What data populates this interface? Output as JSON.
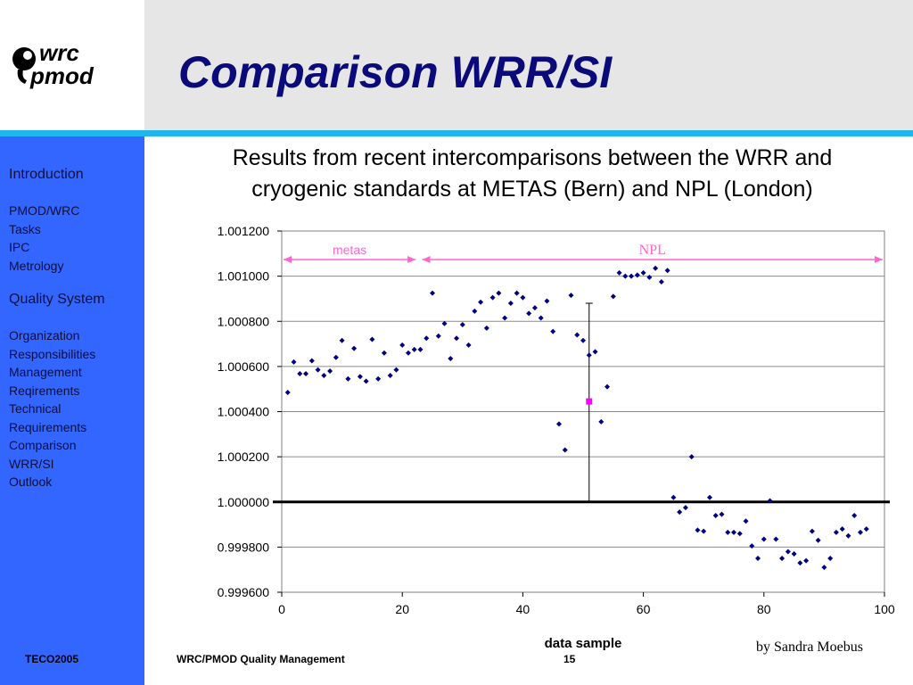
{
  "header": {
    "logo_text_top": "wrc",
    "logo_text_bottom": "pmod",
    "title": "Comparison WRR/SI"
  },
  "sidebar": {
    "sections": [
      {
        "heading": "Introduction",
        "items": [
          "PMOD/WRC",
          "Tasks",
          "IPC",
          "Metrology"
        ]
      },
      {
        "heading": "Quality System",
        "items": [
          "Organization",
          "Responsibilities",
          "Management",
          "Reqirements",
          "Technical",
          "Requirements",
          "Comparison",
          "WRR/SI",
          "Outlook"
        ]
      }
    ]
  },
  "main": {
    "subtitle_line1": "Results from recent intercomparisons between the WRR and",
    "subtitle_line2": "cryogenic standards at METAS (Bern) and NPL (London)",
    "author": "by Sandra Moebus"
  },
  "footer": {
    "left": "TECO2005",
    "center": "WRC/PMOD Quality Management",
    "page": "15"
  },
  "colors": {
    "sidebar": "#3366ff",
    "title": "#0a0a7a",
    "points": "#000080",
    "annotation": "#ff66cc",
    "highlight": "#ff00ff"
  },
  "chart_data": {
    "type": "scatter",
    "xlabel": "data sample",
    "ylabel": "",
    "xlim": [
      0,
      100
    ],
    "ylim": [
      0.9996,
      1.0012
    ],
    "x_ticks": [
      "0",
      "20",
      "40",
      "60",
      "80",
      "100"
    ],
    "y_ticks": [
      "0.999600",
      "0.999800",
      "1.000000",
      "1.000200",
      "1.000400",
      "1.000600",
      "1.000800",
      "1.001000",
      "1.001200"
    ],
    "grid": "horizontal",
    "reference_line": 1.0,
    "annotations": [
      {
        "label": "metas",
        "x_range": [
          0,
          22.5
        ]
      },
      {
        "label": "NPL",
        "x_range": [
          23,
          100
        ]
      }
    ],
    "highlight_point": {
      "x": 51,
      "y": 1.000445,
      "error_low": 1.0,
      "error_high": 1.00088
    },
    "series": [
      {
        "x": [
          1,
          2,
          3,
          4,
          5,
          6,
          7,
          8,
          9,
          10,
          11,
          12,
          13,
          14,
          15,
          16,
          17,
          18,
          19,
          20,
          21,
          22,
          23,
          24,
          25,
          26,
          27,
          28,
          29,
          30,
          31,
          32,
          33,
          34,
          35,
          36,
          37,
          38,
          39,
          40,
          41,
          42,
          43,
          44,
          45,
          46,
          47,
          48,
          49,
          50,
          51,
          52,
          53,
          54,
          55,
          56,
          57,
          58,
          59,
          60,
          61,
          62,
          63,
          64,
          65,
          66,
          67,
          68,
          69,
          70,
          71,
          72,
          73,
          74,
          75,
          76,
          77,
          78,
          79,
          80,
          81,
          82,
          83,
          84,
          85,
          86,
          87,
          88,
          89,
          90,
          91,
          92,
          93,
          94,
          95,
          96,
          97
        ],
        "values": [
          1.000485,
          1.00062,
          1.000568,
          1.000568,
          1.000625,
          1.000585,
          1.00056,
          1.00058,
          1.00064,
          1.000715,
          1.000545,
          1.00068,
          1.000555,
          1.000535,
          1.00072,
          1.000545,
          1.00066,
          1.00056,
          1.000585,
          1.000695,
          1.00066,
          1.000675,
          1.000675,
          1.000725,
          1.000925,
          1.000735,
          1.00079,
          1.000635,
          1.000725,
          1.000785,
          1.000695,
          1.000845,
          1.000885,
          1.00077,
          1.000905,
          1.000925,
          1.000815,
          1.00088,
          1.000925,
          1.000905,
          1.000835,
          1.00086,
          1.000815,
          1.00089,
          1.000755,
          1.000345,
          1.00023,
          1.000915,
          1.00074,
          1.000715,
          1.00065,
          1.000665,
          1.000355,
          1.00051,
          1.00091,
          1.001015,
          1.001,
          1.001,
          1.001005,
          1.001015,
          1.000995,
          1.001035,
          1.000975,
          1.001025,
          1.00002,
          0.999955,
          0.999975,
          1.0002,
          0.999875,
          0.99987,
          1.00002,
          0.99994,
          0.999945,
          0.999865,
          0.999865,
          0.99986,
          0.999915,
          0.999805,
          0.99975,
          0.999835,
          1.000005,
          0.999835,
          0.99975,
          0.99978,
          0.99977,
          0.99973,
          0.99974,
          0.99987,
          0.99983,
          0.99971,
          0.99975,
          0.999865,
          0.99988,
          0.99985,
          0.99994,
          0.999865,
          0.99988
        ]
      }
    ]
  }
}
